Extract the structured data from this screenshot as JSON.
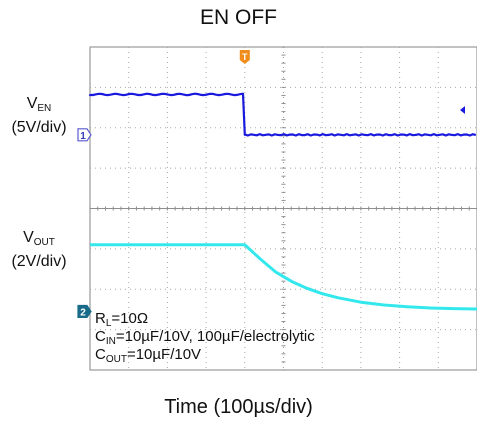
{
  "title": "EN OFF",
  "x_axis_label": "Time (100µs/div)",
  "channels": [
    {
      "name_main": "V",
      "name_sub": "EN",
      "scale": "(5V/div)",
      "marker": "1",
      "color": "#1a1adf"
    },
    {
      "name_main": "V",
      "name_sub": "OUT",
      "scale": "(2V/div)",
      "marker": "2",
      "color": "#33e8ec"
    }
  ],
  "trigger_marker": "T",
  "trigger_color": "#f08c1a",
  "conditions": {
    "line1_main": "R",
    "line1_sub": "L",
    "line1_rest": "=10Ω",
    "line2_main": "C",
    "line2_sub": "IN",
    "line2_rest": "=10µF/10V, 100µF/electrolytic",
    "line3_main": "C",
    "line3_sub": "OUT",
    "line3_rest": "=10µF/10V"
  },
  "chart_data": {
    "type": "line",
    "title": "EN OFF",
    "xlabel": "Time (100µs/div)",
    "x_unit": "µs",
    "xlim": [
      -200,
      300
    ],
    "divisions": {
      "x": 10,
      "y": 8
    },
    "grid": true,
    "series": [
      {
        "name": "VEN",
        "color": "#1a1adf",
        "x": [
          -200,
          0,
          0.1,
          300
        ],
        "y": [
          5,
          5,
          0,
          0
        ]
      },
      {
        "name": "VOUT",
        "color": "#33e8ec",
        "x": [
          -200,
          0,
          20,
          40,
          60,
          80,
          100,
          120,
          150,
          180,
          210,
          240,
          270,
          300
        ],
        "y": [
          3.3,
          3.3,
          2.6,
          1.95,
          1.5,
          1.15,
          0.88,
          0.68,
          0.46,
          0.32,
          0.23,
          0.17,
          0.14,
          0.12
        ]
      }
    ]
  }
}
